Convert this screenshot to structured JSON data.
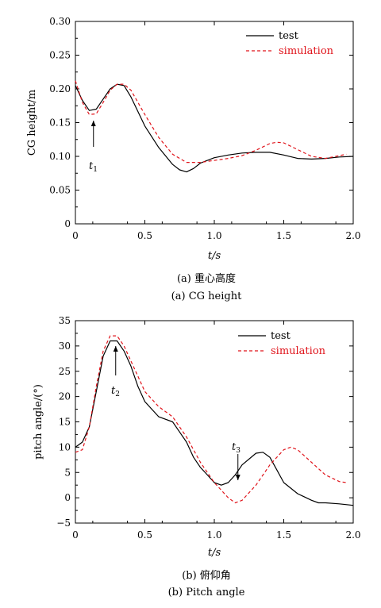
{
  "chart_data": [
    {
      "type": "line",
      "ylabel": "CG height/m",
      "xlabel": "t/s",
      "caption_cn": "(a) 重心高度",
      "caption_en": "(a) CG height",
      "xlim": [
        0,
        2.0
      ],
      "ylim": [
        0,
        0.3
      ],
      "xticks": [
        "0",
        "0.5",
        "1.0",
        "1.5",
        "2.0"
      ],
      "yticks": [
        "0",
        "0.05",
        "0.10",
        "0.15",
        "0.20",
        "0.25",
        "0.30"
      ],
      "legend": [
        "test",
        "simulation"
      ],
      "series": [
        {
          "name": "test",
          "color": "#000000",
          "style": "solid",
          "x": [
            0,
            0.05,
            0.1,
            0.15,
            0.2,
            0.25,
            0.3,
            0.35,
            0.4,
            0.5,
            0.6,
            0.7,
            0.75,
            0.8,
            0.85,
            0.9,
            1.0,
            1.1,
            1.2,
            1.3,
            1.4,
            1.5,
            1.6,
            1.7,
            1.8,
            1.9,
            2.0
          ],
          "y": [
            0.205,
            0.183,
            0.168,
            0.17,
            0.185,
            0.2,
            0.207,
            0.205,
            0.188,
            0.145,
            0.113,
            0.088,
            0.08,
            0.077,
            0.082,
            0.09,
            0.098,
            0.102,
            0.105,
            0.106,
            0.106,
            0.102,
            0.097,
            0.096,
            0.097,
            0.099,
            0.1
          ]
        },
        {
          "name": "simulation",
          "color": "#e0141b",
          "style": "dashed",
          "x": [
            0,
            0.05,
            0.1,
            0.15,
            0.2,
            0.25,
            0.3,
            0.35,
            0.4,
            0.5,
            0.6,
            0.7,
            0.8,
            0.9,
            1.0,
            1.1,
            1.2,
            1.3,
            1.4,
            1.45,
            1.5,
            1.6,
            1.7,
            1.8,
            1.9,
            1.95
          ],
          "y": [
            0.212,
            0.18,
            0.162,
            0.163,
            0.18,
            0.198,
            0.207,
            0.207,
            0.198,
            0.162,
            0.128,
            0.103,
            0.091,
            0.091,
            0.094,
            0.097,
            0.101,
            0.109,
            0.119,
            0.121,
            0.12,
            0.11,
            0.1,
            0.097,
            0.101,
            0.103
          ]
        }
      ],
      "annotations": [
        {
          "text": "t",
          "sub": "1",
          "x": 0.13,
          "y": 0.16
        }
      ]
    },
    {
      "type": "line",
      "ylabel": "pitch angle/(°)",
      "xlabel": "t/s",
      "caption_cn": "(b) 俯仰角",
      "caption_en": "(b) Pitch angle",
      "xlim": [
        0,
        2.0
      ],
      "ylim": [
        -5,
        35
      ],
      "xticks": [
        "0",
        "0.5",
        "1.0",
        "1.5",
        "2.0"
      ],
      "yticks": [
        "−5",
        "0",
        "5",
        "10",
        "15",
        "20",
        "25",
        "30",
        "35"
      ],
      "legend": [
        "test",
        "simulation"
      ],
      "series": [
        {
          "name": "test",
          "color": "#000000",
          "style": "solid",
          "x": [
            0,
            0.05,
            0.1,
            0.15,
            0.2,
            0.25,
            0.3,
            0.35,
            0.4,
            0.45,
            0.5,
            0.6,
            0.7,
            0.75,
            0.8,
            0.85,
            0.9,
            0.95,
            1.0,
            1.05,
            1.1,
            1.15,
            1.2,
            1.3,
            1.35,
            1.4,
            1.45,
            1.5,
            1.6,
            1.7,
            1.75,
            1.8,
            1.9,
            2.0
          ],
          "y": [
            10,
            11,
            14,
            21,
            28,
            31,
            31,
            29,
            26,
            22,
            19,
            16,
            15,
            13,
            11,
            8,
            6,
            4.5,
            3,
            2.5,
            3,
            4.5,
            6.5,
            8.8,
            9,
            8,
            5.5,
            3,
            0.8,
            -0.5,
            -1,
            -1,
            -1.2,
            -1.5
          ]
        },
        {
          "name": "simulation",
          "color": "#e0141b",
          "style": "dashed",
          "x": [
            0,
            0.05,
            0.1,
            0.15,
            0.2,
            0.25,
            0.3,
            0.35,
            0.4,
            0.45,
            0.5,
            0.6,
            0.7,
            0.8,
            0.9,
            1.0,
            1.1,
            1.15,
            1.2,
            1.3,
            1.4,
            1.5,
            1.55,
            1.6,
            1.7,
            1.8,
            1.9,
            1.95
          ],
          "y": [
            9,
            9.5,
            14,
            22,
            29,
            32,
            32,
            30,
            27,
            24,
            21,
            18,
            16,
            12,
            7,
            3,
            0,
            -1,
            -0.5,
            2.5,
            6.5,
            9.5,
            10,
            9.5,
            7,
            4.5,
            3.2,
            3
          ]
        }
      ],
      "annotations": [
        {
          "text": "t",
          "sub": "2",
          "x": 0.29,
          "y": 31
        },
        {
          "text": "t",
          "sub": "3",
          "x": 1.17,
          "y": 6
        }
      ]
    }
  ]
}
